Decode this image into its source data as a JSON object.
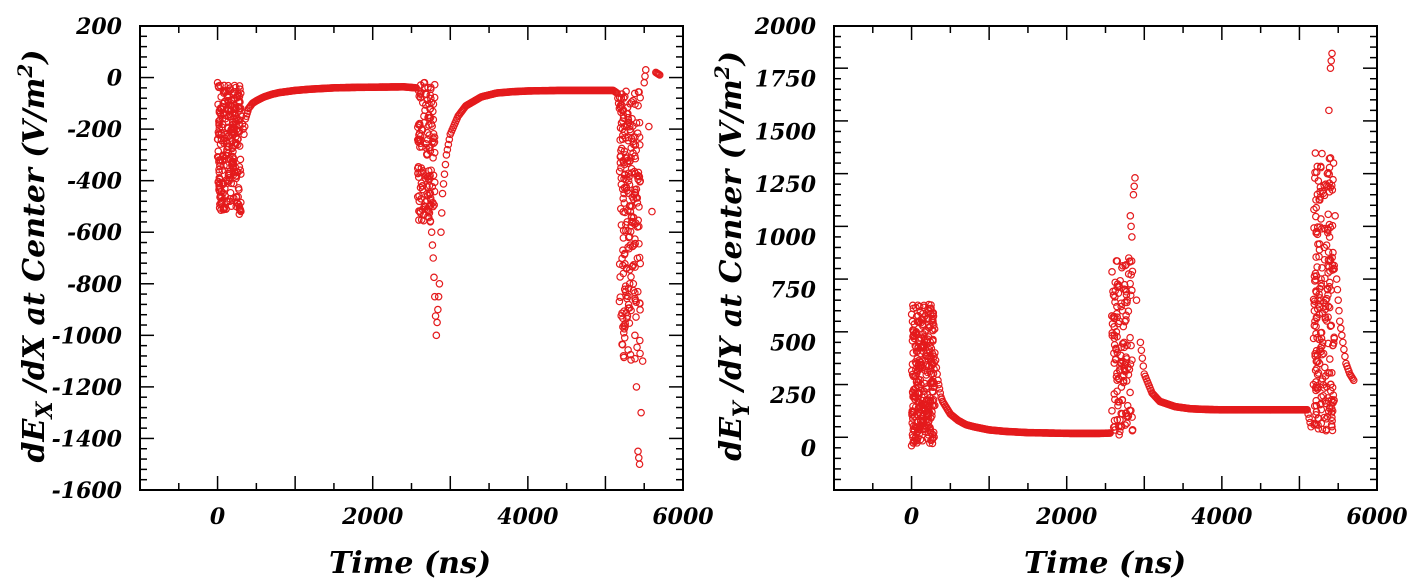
{
  "chart_data": [
    {
      "type": "scatter",
      "xlabel": "Time (ns)",
      "ylabel_parts": {
        "pre": "dE",
        "sub": "X",
        "mid": " /dX at Center (V/m",
        "sup": "2",
        "post": ")"
      },
      "xlim": [
        -1000,
        6000
      ],
      "ylim": [
        -1600,
        200
      ],
      "xticks": [
        0,
        2000,
        4000,
        6000
      ],
      "yticks": [
        200,
        0,
        -200,
        -400,
        -600,
        -800,
        -1000,
        -1200,
        -1400,
        -1600
      ],
      "grid": false,
      "marker_color": "#e41a1c",
      "series": [
        {
          "x": [
            0,
            20,
            40,
            60,
            80,
            100,
            120,
            140,
            160,
            180,
            200,
            220,
            240,
            260,
            280,
            300,
            320,
            340,
            360,
            380,
            400,
            450,
            500,
            600,
            700,
            800,
            1000,
            1200,
            1500,
            1800,
            2100,
            2400,
            2560,
            2600,
            2620,
            2640,
            2660,
            2680,
            2700,
            2720,
            2740,
            2760,
            2780,
            2800,
            2820,
            2840,
            2860,
            2880,
            2900,
            2950,
            3000,
            3100,
            3200,
            3400,
            3600,
            3800,
            4000,
            4400,
            4800,
            5100,
            5150,
            5180,
            5200,
            5220,
            5240,
            5260,
            5280,
            5300,
            5320,
            5340,
            5360,
            5380,
            5400,
            5420,
            5440,
            5460,
            5480,
            5500,
            5520,
            5560,
            5600,
            5650,
            5700
          ],
          "y": [
            -20,
            -420,
            -120,
            -360,
            -60,
            -460,
            -280,
            -120,
            -480,
            -200,
            -350,
            -80,
            -500,
            -260,
            -530,
            -120,
            -180,
            -220,
            -160,
            -140,
            -120,
            -100,
            -90,
            -75,
            -65,
            -58,
            -50,
            -45,
            -40,
            -38,
            -37,
            -36,
            -40,
            -480,
            -60,
            -420,
            -150,
            -500,
            -300,
            -520,
            -380,
            -600,
            -700,
            -850,
            -1000,
            -900,
            -800,
            -600,
            -450,
            -300,
            -220,
            -150,
            -110,
            -75,
            -60,
            -55,
            -52,
            -50,
            -50,
            -50,
            -60,
            -120,
            -350,
            -200,
            -450,
            -300,
            -560,
            -400,
            -650,
            -500,
            -800,
            -1000,
            -1200,
            -1450,
            -1500,
            -1300,
            -1100,
            -20,
            30,
            -190,
            -520,
            20,
            10
          ],
          "noise": [
            [
              0,
              300,
              240,
              30,
              520
            ],
            [
              2580,
              2800,
              130,
              20,
              560
            ],
            [
              5180,
              5450,
              220,
              50,
              1100
            ]
          ]
        }
      ]
    },
    {
      "type": "scatter",
      "xlabel": "Time (ns)",
      "ylabel_parts": {
        "pre": "dE",
        "sub": "Y",
        "mid": " /dY at Center (V/m",
        "sup": "2",
        "post": ")"
      },
      "xlim": [
        -1000,
        6000
      ],
      "ylim": [
        -200,
        2000
      ],
      "xticks": [
        0,
        2000,
        4000,
        6000
      ],
      "yticks": [
        2000,
        1750,
        1500,
        1250,
        1000,
        750,
        500,
        250,
        0
      ],
      "grid": false,
      "marker_color": "#e41a1c",
      "series": [
        {
          "x": [
            0,
            20,
            40,
            60,
            80,
            100,
            120,
            140,
            160,
            180,
            200,
            220,
            240,
            260,
            280,
            300,
            320,
            340,
            360,
            380,
            400,
            450,
            500,
            600,
            700,
            800,
            1000,
            1200,
            1500,
            1800,
            2100,
            2400,
            2560,
            2600,
            2620,
            2640,
            2660,
            2680,
            2700,
            2720,
            2740,
            2760,
            2780,
            2800,
            2820,
            2840,
            2860,
            2880,
            2900,
            2950,
            3000,
            3100,
            3200,
            3400,
            3600,
            3800,
            4000,
            4400,
            4800,
            5100,
            5150,
            5180,
            5200,
            5220,
            5240,
            5260,
            5280,
            5300,
            5320,
            5340,
            5360,
            5380,
            5400,
            5420,
            5440,
            5460,
            5480,
            5500,
            5520,
            5560,
            5600,
            5650,
            5700
          ],
          "y": [
            10,
            450,
            150,
            550,
            80,
            600,
            300,
            120,
            620,
            200,
            500,
            150,
            660,
            350,
            640,
            450,
            380,
            320,
            280,
            240,
            220,
            190,
            160,
            130,
            110,
            100,
            85,
            78,
            72,
            70,
            68,
            68,
            70,
            620,
            100,
            550,
            200,
            600,
            400,
            650,
            500,
            750,
            700,
            900,
            1100,
            1000,
            1200,
            1280,
            700,
            500,
            350,
            260,
            220,
            195,
            185,
            182,
            180,
            180,
            180,
            180,
            100,
            300,
            600,
            200,
            700,
            400,
            800,
            500,
            950,
            700,
            1300,
            1600,
            1800,
            1870,
            1350,
            1100,
            800,
            700,
            600,
            500,
            400,
            350,
            320
          ],
          "noise": [
            [
              0,
              300,
              300,
              20,
              680
            ],
            [
              2580,
              2850,
              130,
              50,
              900
            ],
            [
              5180,
              5450,
              220,
              80,
              1400
            ]
          ]
        }
      ]
    }
  ]
}
